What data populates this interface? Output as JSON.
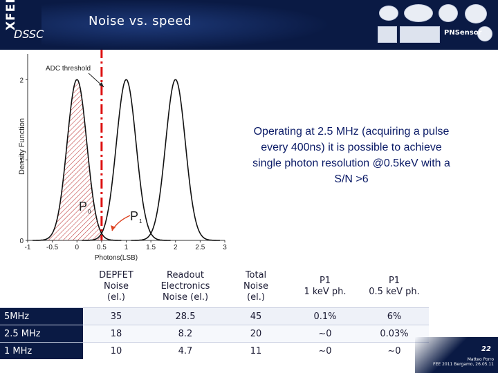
{
  "header": {
    "logo_text": "XFEL",
    "subtitle": "DSSC",
    "title": "Noise vs. speed",
    "partner_label": "PNSensor"
  },
  "chart_data": {
    "type": "line",
    "xlabel": "Photons(LSB)",
    "ylabel": "Density Function",
    "xlim": [
      -1,
      3
    ],
    "ylim": [
      0,
      2.2
    ],
    "x_ticks": [
      "-1",
      "-0.5",
      "0",
      "0.5",
      "1",
      "1.5",
      "2",
      "2.5",
      "3"
    ],
    "y_ticks": [
      "0",
      "1",
      "2"
    ],
    "series": [
      {
        "peak_position": 0,
        "peak_height": 2
      },
      {
        "peak_position": 1,
        "peak_height": 2
      },
      {
        "peak_position": 2,
        "peak_height": 2
      }
    ],
    "threshold_x": 0.5,
    "annotations": [
      "ADC threshold",
      "P",
      "0",
      "P",
      "1"
    ],
    "color_threshold": "#dd1111",
    "color_shading": "#c04040"
  },
  "statement": "Operating at 2.5 MHz (acquiring a pulse every 400ns) it is possible to achieve single photon resolution @0.5keV with a S/N >6",
  "table": {
    "headers": [
      [
        "DEPFET",
        "Noise",
        "(el.)"
      ],
      [
        "Readout",
        "Electronics",
        "Noise (el.)"
      ],
      [
        "Total",
        "Noise",
        "(el.)"
      ],
      [
        "P1",
        "1 keV ph."
      ],
      [
        "P1",
        "0.5 keV ph."
      ]
    ],
    "rows": [
      {
        "label": "5MHz",
        "cells": [
          "35",
          "28.5",
          "45",
          "0.1%",
          "6%"
        ]
      },
      {
        "label": "2.5 MHz",
        "cells": [
          "18",
          "8.2",
          "20",
          "~0",
          "0.03%"
        ]
      },
      {
        "label": "1 MHz",
        "cells": [
          "10",
          "4.7",
          "11",
          "~0",
          "~0"
        ]
      }
    ]
  },
  "footer": {
    "page_number": "22",
    "author": "Matteo Porro",
    "event": "FEE 2011 Bergamo, 26.05.11"
  },
  "colors": {
    "header_bg": "#0a1a44",
    "statement_text": "#0a1a66"
  }
}
